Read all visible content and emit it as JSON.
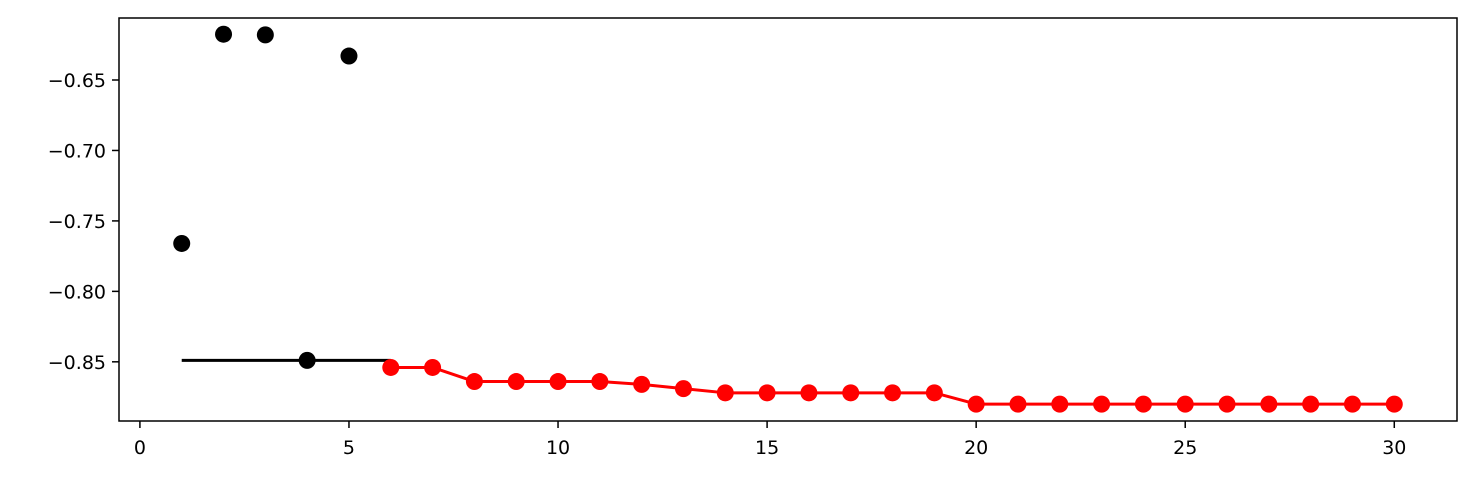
{
  "chart_data": {
    "type": "scatter",
    "title": "",
    "xlabel": "",
    "ylabel": "",
    "xlim": [
      -0.5,
      31.5
    ],
    "ylim": [
      -0.892,
      -0.606
    ],
    "x_ticks": [
      0,
      5,
      10,
      15,
      20,
      25,
      30
    ],
    "x_tick_labels": [
      "0",
      "5",
      "10",
      "15",
      "20",
      "25",
      "30"
    ],
    "y_ticks": [
      -0.65,
      -0.7,
      -0.75,
      -0.8,
      -0.85
    ],
    "y_tick_labels": [
      "−0.65",
      "−0.70",
      "−0.75",
      "−0.80",
      "−0.85"
    ],
    "grid": false,
    "colors": {
      "initial": "#000000",
      "optimized": "#ff0000"
    },
    "series": [
      {
        "marker": "point",
        "color": "#000000",
        "x": [
          1,
          2,
          3,
          4,
          5
        ],
        "y": [
          -0.766,
          -0.6175,
          -0.618,
          -0.849,
          -0.633
        ]
      },
      {
        "marker": "line",
        "color": "#000000",
        "x": [
          1,
          6
        ],
        "y": [
          -0.849,
          -0.849
        ]
      },
      {
        "marker": "line-point",
        "color": "#ff0000",
        "x": [
          6,
          7,
          8,
          9,
          10,
          11,
          12,
          13,
          14,
          15,
          16,
          17,
          18,
          19,
          20,
          21,
          22,
          23,
          24,
          25,
          26,
          27,
          28,
          29,
          30
        ],
        "y": [
          -0.854,
          -0.854,
          -0.864,
          -0.864,
          -0.864,
          -0.864,
          -0.866,
          -0.869,
          -0.872,
          -0.872,
          -0.872,
          -0.872,
          -0.872,
          -0.872,
          -0.88,
          -0.88,
          -0.88,
          -0.88,
          -0.88,
          -0.88,
          -0.88,
          -0.88,
          -0.88,
          -0.88,
          -0.88
        ]
      }
    ]
  }
}
